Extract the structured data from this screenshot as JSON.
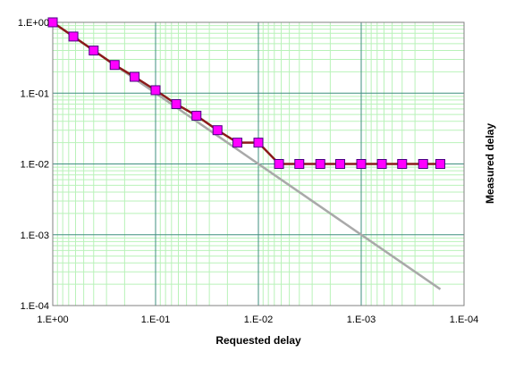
{
  "chart_data": {
    "type": "line",
    "xlabel": "Requested delay",
    "ylabel": "Measured delay",
    "x_scale": "log",
    "y_scale": "log",
    "x_reversed": true,
    "xlim": [
      1,
      0.0001
    ],
    "ylim": [
      0.0001,
      1
    ],
    "x_ticks": [
      1,
      0.1,
      0.01,
      0.001,
      0.0001
    ],
    "x_tick_labels": [
      "1.E+00",
      "1.E-01",
      "1.E-02",
      "1.E-03",
      "1.E-04"
    ],
    "y_ticks": [
      1,
      0.1,
      0.01,
      0.001,
      0.0001
    ],
    "y_tick_labels": [
      "1.E+00",
      "1.E-01",
      "1.E-02",
      "1.E-03",
      "1.E-04"
    ],
    "grid": true,
    "legend": "none",
    "colors": {
      "plot_background": "#ffffff",
      "minor_grid": "#b9f2b9",
      "major_grid": "#3f8f7f",
      "frame": "#808080",
      "reference_line": "#a9a9a9",
      "measured_line": "#8b1a1a",
      "marker_fill": "#ff00ff",
      "marker_edge": "#4b0082"
    },
    "series": [
      {
        "role": "reference",
        "x": [
          1,
          0.00017
        ],
        "y": [
          1,
          0.00017
        ]
      },
      {
        "role": "measured",
        "marker": "square",
        "x": [
          1,
          0.63,
          0.4,
          0.25,
          0.16,
          0.1,
          0.063,
          0.04,
          0.025,
          0.016,
          0.01,
          0.0063,
          0.004,
          0.0025,
          0.0016,
          0.001,
          0.00063,
          0.0004,
          0.00025,
          0.00017
        ],
        "y": [
          1,
          0.63,
          0.4,
          0.25,
          0.17,
          0.11,
          0.07,
          0.048,
          0.03,
          0.02,
          0.02,
          0.01,
          0.01,
          0.01,
          0.01,
          0.01,
          0.01,
          0.01,
          0.01,
          0.01
        ]
      }
    ]
  }
}
